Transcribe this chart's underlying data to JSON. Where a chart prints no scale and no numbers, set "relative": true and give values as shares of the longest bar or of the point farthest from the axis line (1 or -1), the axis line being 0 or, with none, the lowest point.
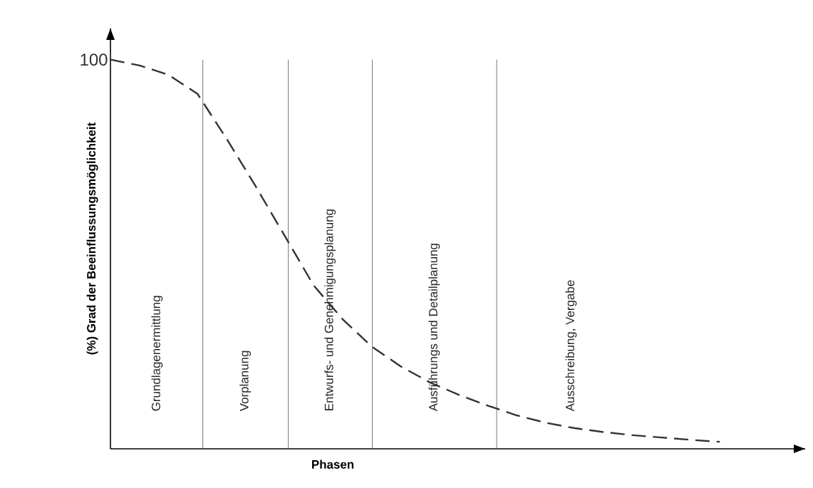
{
  "chart_data": {
    "type": "line",
    "relative": true,
    "xlabel": "Phasen",
    "ylabel": "(%) Grad der Beeinflussungsmöglichkeit",
    "grid": false,
    "marker": "none",
    "line_style": "dashed",
    "annotations": [
      "100",
      "Grundlagenermittlung",
      "Vorplanung",
      "Entwurfs- und Genehmigungsplanung",
      "Ausführungs und Detailplanung",
      "Ausschreibung, Vergabe"
    ],
    "categories": [
      null,
      null,
      null,
      null,
      null,
      null,
      null,
      null,
      null,
      null,
      null,
      null,
      null,
      null,
      null,
      null,
      null,
      null,
      null,
      null,
      null,
      null
    ],
    "series": [
      {
        "color": "#333333",
        "values": [
          1.0,
          0.985,
          0.961,
          0.912,
          0.797,
          0.675,
          0.548,
          0.42,
          0.333,
          0.263,
          0.212,
          0.171,
          0.139,
          0.111,
          0.086,
          0.067,
          0.053,
          0.043,
          0.035,
          0.029,
          0.023,
          0.018
        ]
      }
    ]
  }
}
